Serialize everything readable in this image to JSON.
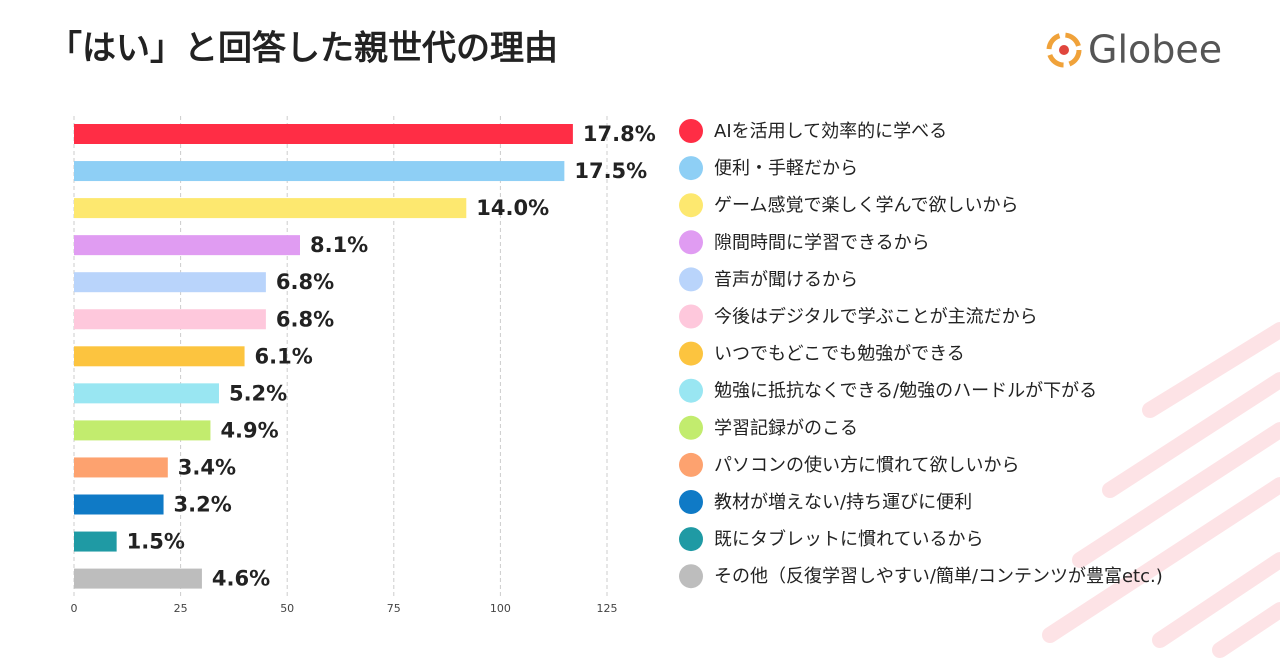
{
  "logo": "Globee",
  "chart_data": {
    "type": "bar",
    "orientation": "horizontal",
    "title": "「はい」と回答した親世代の理由",
    "categories": [
      "AIを活用して効率的に学べる",
      "便利・手軽だから",
      "ゲーム感覚で楽しく学んで欲しいから",
      "隙間時間に学習できるから",
      "音声が聞けるから",
      "今後はデジタルで学ぶことが主流だから",
      "いつでもどこでも勉強ができる",
      "勉強に抵抗なくできる/勉強のハードルが下がる",
      "学習記録がのこる",
      "パソコンの使い方に慣れて欲しいから",
      "教材が増えない/持ち運びに便利",
      "既にタブレットに慣れているから",
      "その他（反復学習しやすい/簡単/コンテンツが豊富etc.)"
    ],
    "values": [
      117,
      115,
      92,
      53,
      45,
      45,
      40,
      34,
      32,
      22,
      21,
      10,
      30
    ],
    "value_labels": [
      "17.8%",
      "17.5%",
      "14.0%",
      "8.1%",
      "6.8%",
      "6.8%",
      "6.1%",
      "5.2%",
      "4.9%",
      "3.4%",
      "3.2%",
      "1.5%",
      "4.6%"
    ],
    "colors": [
      "#ff2d45",
      "#8ecff5",
      "#fde86f",
      "#e09cf2",
      "#b9d4fb",
      "#fec8dc",
      "#fcc43f",
      "#99e6f2",
      "#c2ec6e",
      "#fda26f",
      "#0f7ac6",
      "#1f9aa4",
      "#bdbdbd"
    ],
    "xlim": [
      0,
      125
    ],
    "xticks": [
      0,
      25,
      50,
      75,
      100,
      125
    ],
    "grid": true,
    "legend": "right"
  }
}
